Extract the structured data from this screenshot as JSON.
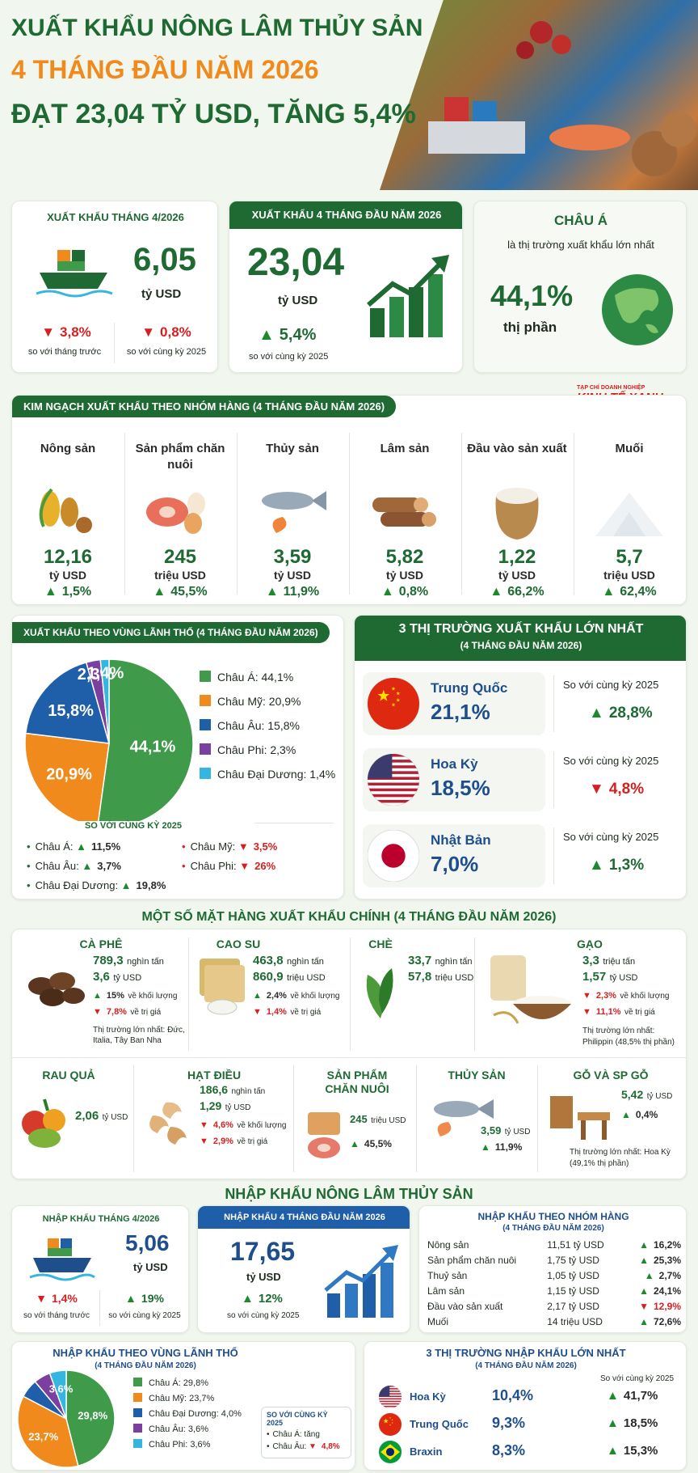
{
  "header": {
    "line1": "XUẤT KHẨU NÔNG LÂM THỦY SẢN",
    "line2": "4 THÁNG ĐẦU NĂM 2026",
    "line3": "ĐẠT 23,04 TỶ USD, TĂNG 5,4%"
  },
  "colors": {
    "primary_green": "#1e6a32",
    "orange": "#f08a1c",
    "blue": "#1f4e8c",
    "red": "#d61f1f"
  },
  "kpi": {
    "april": {
      "title": "XUẤT KHẨU THÁNG 4/2026",
      "value": "6,05",
      "unit": "tỷ USD",
      "chg1": "3,8%",
      "chg1_label": "so với tháng trước",
      "chg2": "0,8%",
      "chg2_label": "so với cùng kỳ 2025"
    },
    "four_months": {
      "title": "XUẤT KHẨU 4 THÁNG ĐẦU NĂM 2026",
      "value": "23,04",
      "unit": "tỷ USD",
      "chg": "5,4%",
      "chg_label": "so với cùng kỳ 2025"
    },
    "asia": {
      "title": "CHÂU Á",
      "subtitle": "là thị trường xuất khẩu lớn nhất",
      "value": "44,1%",
      "label": "thị phần"
    }
  },
  "logo": {
    "top": "TẠP CHÍ DOANH NGHIỆP",
    "main": "KINH TẾ XANH"
  },
  "groups": {
    "title": "KIM NGẠCH XUẤT KHẨU THEO NHÓM HÀNG (4 THÁNG ĐẦU NĂM 2026)",
    "items": [
      {
        "name": "Nông sản",
        "value": "12,16",
        "unit": "tỷ USD",
        "change": "1,5%",
        "icon": "grain-icon"
      },
      {
        "name": "Sản phẩm chăn nuôi",
        "value": "245",
        "unit": "triệu USD",
        "change": "45,5%",
        "icon": "meat-egg-icon"
      },
      {
        "name": "Thủy sản",
        "value": "3,59",
        "unit": "tỷ USD",
        "change": "11,9%",
        "icon": "fish-icon"
      },
      {
        "name": "Lâm sản",
        "value": "5,82",
        "unit": "tỷ USD",
        "change": "0,8%",
        "icon": "log-icon"
      },
      {
        "name": "Đầu vào sản xuất",
        "value": "1,22",
        "unit": "tỷ USD",
        "change": "66,2%",
        "icon": "sack-icon"
      },
      {
        "name": "Muối",
        "value": "5,7",
        "unit": "triệu USD",
        "change": "62,4%",
        "icon": "salt-icon"
      }
    ]
  },
  "region": {
    "title": "XUẤT KHẨU THEO VÙNG LÃNH THỔ (4 THÁNG ĐẦU NĂM 2026)",
    "chart_data": {
      "type": "pie",
      "slices": [
        {
          "label": "Châu Á",
          "value": 44.1,
          "text": "44,1%",
          "color": "#3f9a4a"
        },
        {
          "label": "Châu Mỹ",
          "value": 20.9,
          "text": "20,9%",
          "color": "#f08a1c"
        },
        {
          "label": "Châu Âu",
          "value": 15.8,
          "text": "15,8%",
          "color": "#1f5ea8"
        },
        {
          "label": "Châu Phi",
          "value": 2.3,
          "text": "2,3%",
          "color": "#7b3fa0"
        },
        {
          "label": "Châu Đại Dương",
          "value": 1.4,
          "text": "1,4%",
          "color": "#35b6e0"
        }
      ]
    },
    "legend": [
      "Châu Á: 44,1%",
      "Châu Mỹ: 20,9%",
      "Châu Âu: 15,8%",
      "Châu Phi: 2,3%",
      "Châu Đại Dương: 1,4%"
    ],
    "compare_title": "SO VỚI CÙNG KỲ 2025",
    "compare": [
      {
        "label": "Châu Á:",
        "value": "11,5%",
        "dir": "up"
      },
      {
        "label": "Châu Mỹ:",
        "value": "3,5%",
        "dir": "down"
      },
      {
        "label": "Châu Âu:",
        "value": "3,7%",
        "dir": "up"
      },
      {
        "label": "Châu Phi:",
        "value": "26%",
        "dir": "down"
      },
      {
        "label": "Châu Đại Dương:",
        "value": "19,8%",
        "dir": "up"
      }
    ]
  },
  "top3": {
    "title": "3 THỊ TRƯỜNG XUẤT KHẨU LỚN NHẤT",
    "subtitle": "(4 THÁNG ĐẦU NĂM 2026)",
    "items": [
      {
        "country": "Trung Quốc",
        "share": "21,1%",
        "label": "So với cùng kỳ 2025",
        "change": "28,8%",
        "dir": "up"
      },
      {
        "country": "Hoa Kỳ",
        "share": "18,5%",
        "label": "So với cùng kỳ 2025",
        "change": "4,8%",
        "dir": "down"
      },
      {
        "country": "Nhật Bản",
        "share": "7,0%",
        "label": "So với cùng kỳ 2025",
        "change": "1,3%",
        "dir": "up"
      }
    ]
  },
  "products": {
    "title": "MỘT SỐ MẶT HÀNG XUẤT KHẨU CHÍNH (4 THÁNG ĐẦU NĂM 2026)",
    "coffee": {
      "name": "CÀ PHÊ",
      "v1": "789,3",
      "u1": "nghìn tấn",
      "v2": "3,6",
      "u2": "tỷ USD",
      "c1": "15%",
      "c1l": "về khối lượng",
      "c2": "7,8%",
      "c2l": "về trị giá",
      "market": "Thị trường lớn nhất: Đức, Italia, Tây Ban Nha"
    },
    "rubber": {
      "name": "CAO SU",
      "v1": "463,8",
      "u1": "nghìn tấn",
      "v2": "860,9",
      "u2": "triệu USD",
      "c1": "2,4%",
      "c1l": "về khối lượng",
      "c2": "1,4%",
      "c2l": "về trị giá"
    },
    "tea": {
      "name": "CHÈ",
      "v1": "33,7",
      "u1": "nghìn tấn",
      "v2": "57,8",
      "u2": "triệu USD"
    },
    "rice": {
      "name": "GẠO",
      "v1": "3,3",
      "u1": "triệu tấn",
      "v2": "1,57",
      "u2": "tỷ USD",
      "c1": "2,3%",
      "c1l": "về khối lượng",
      "c2": "11,1%",
      "c2l": "về trị giá",
      "market": "Thị trường lớn nhất:",
      "market2": "Philippin (48,5% thị phần)"
    },
    "veg": {
      "name": "RAU QUẢ",
      "v": "2,06",
      "u": "tỷ USD"
    },
    "cashew": {
      "name": "HẠT ĐIỀU",
      "v1": "186,6",
      "u1": "nghìn tấn",
      "v2": "1,29",
      "u2": "tỷ USD",
      "c1": "4,6%",
      "c1l": "về khối lượng",
      "c2": "2,9%",
      "c2l": "về trị giá"
    },
    "livestock": {
      "name": "SẢN PHẨM CHĂN NUÔI",
      "v": "245",
      "u": "triệu USD",
      "c": "45,5%"
    },
    "seafood": {
      "name": "THỦY SẢN",
      "v": "3,59",
      "u": "tỷ USD",
      "c": "11,9%"
    },
    "wood": {
      "name": "GỖ VÀ SP GỖ",
      "v": "5,42",
      "u": "tỷ USD",
      "c": "0,4%",
      "market": "Thị trường lớn nhất: Hoa Kỳ",
      "market2": "(49,1% thị phần)"
    }
  },
  "import": {
    "title": "NHẬP KHẨU NÔNG LÂM THỦY SẢN",
    "april": {
      "title": "NHẬP KHẨU THÁNG 4/2026",
      "value": "5,06",
      "unit": "tỷ USD",
      "chg1": "1,4%",
      "chg1_label": "so với tháng trước",
      "chg2": "19%",
      "chg2_label": "so với cùng kỳ 2025"
    },
    "four_months": {
      "title": "NHẬP KHẨU 4 THÁNG ĐẦU NĂM 2026",
      "value": "17,65",
      "unit": "tỷ USD",
      "chg": "12%",
      "chg_label": "so với cùng kỳ 2025"
    },
    "groups": {
      "title": "NHẬP KHẨU THEO NHÓM HÀNG",
      "subtitle": "(4 THÁNG ĐẦU NĂM 2026)",
      "rows": [
        {
          "name": "Nông sản",
          "value": "11,51 tỷ USD",
          "change": "16,2%",
          "dir": "up"
        },
        {
          "name": "Sản phẩm chăn nuôi",
          "value": "1,75 tỷ USD",
          "change": "25,3%",
          "dir": "up"
        },
        {
          "name": "Thuỷ sản",
          "value": "1,05 tỷ USD",
          "change": "2,7%",
          "dir": "up"
        },
        {
          "name": "Lâm sản",
          "value": "1,15 tỷ USD",
          "change": "24,1%",
          "dir": "up"
        },
        {
          "name": "Đầu vào sản xuất",
          "value": "2,17 tỷ USD",
          "change": "12,9%",
          "dir": "down"
        },
        {
          "name": "Muối",
          "value": "14 triệu USD",
          "change": "72,6%",
          "dir": "up"
        }
      ]
    },
    "region": {
      "title": "NHẬP KHẨU THEO VÙNG LÃNH THỔ",
      "subtitle": "(4 THÁNG ĐẦU NĂM 2026)",
      "chart_data": {
        "type": "pie",
        "slices": [
          {
            "label": "Châu Á",
            "value": 29.8,
            "text": "29,8%",
            "color": "#3f9a4a"
          },
          {
            "label": "Châu Mỹ",
            "value": 23.7,
            "text": "23,7%",
            "color": "#f08a1c"
          },
          {
            "label": "Châu Đại Dương",
            "value": 4.0,
            "text": "",
            "color": "#1f5ea8"
          },
          {
            "label": "Châu Âu",
            "value": 3.6,
            "text": "",
            "color": "#7b3fa0"
          },
          {
            "label": "Châu Phi",
            "value": 3.6,
            "text": "3,6%",
            "color": "#35b6e0"
          }
        ]
      },
      "legend": [
        "Châu Á: 29,8%",
        "Châu Mỹ: 23,7%",
        "Châu Đại Dương: 4,0%",
        "Châu Âu: 3,6%",
        "Châu Phi: 3,6%"
      ],
      "compare_title": "SO VỚI CÙNG KỲ 2025",
      "compare": [
        {
          "label": "Châu Á: tăng",
          "value": "",
          "dir": "none"
        },
        {
          "label": "Châu Âu:",
          "value": "4,8%",
          "dir": "down"
        }
      ]
    },
    "top3": {
      "title": "3 THỊ TRƯỜNG NHẬP KHẨU LỚN NHẤT",
      "subtitle": "(4 THÁNG ĐẦU NĂM 2026)",
      "compare_label": "So với cùng kỳ 2025",
      "items": [
        {
          "country": "Hoa Kỳ",
          "share": "10,4%",
          "change": "41,7%",
          "dir": "up"
        },
        {
          "country": "Trung Quốc",
          "share": "9,3%",
          "change": "18,5%",
          "dir": "up"
        },
        {
          "country": "Braxin",
          "share": "8,3%",
          "change": "15,3%",
          "dir": "up"
        }
      ]
    }
  }
}
